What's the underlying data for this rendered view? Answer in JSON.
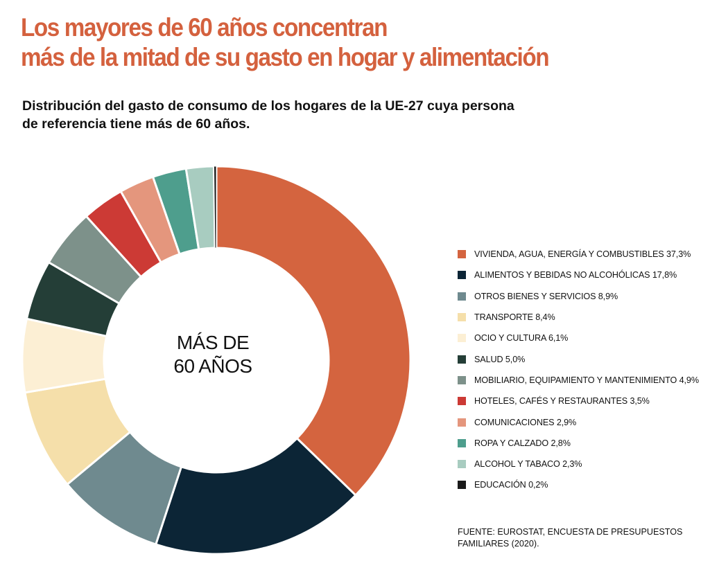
{
  "header": {
    "title_line1": "Los mayores de 60 años concentran",
    "title_line2": "más de la mitad de su gasto en hogar y alimentación",
    "subtitle_line1": "Distribución del gasto de consumo de los hogares de la UE-27 cuya persona",
    "subtitle_line2": "de referencia tiene más de 60 años."
  },
  "chart_data": {
    "type": "pie",
    "donut": true,
    "center_label_line1": "MÁS DE",
    "center_label_line2": "60 AÑOS",
    "unit": "%",
    "slices": [
      {
        "label": "VIVIENDA, AGUA, ENERGÍA Y COMBUSTIBLES 37,3%",
        "value": 37.3,
        "color": "#D4643F"
      },
      {
        "label": "ALIMENTOS Y BEBIDAS NO ALCOHÓLICAS 17,8%",
        "value": 17.8,
        "color": "#0C2536"
      },
      {
        "label": "OTROS BIENES Y SERVICIOS 8,9%",
        "value": 8.9,
        "color": "#6F8A8F"
      },
      {
        "label": "TRANSPORTE 8,4%",
        "value": 8.4,
        "color": "#F5DFAA"
      },
      {
        "label": "OCIO Y CULTURA 6,1%",
        "value": 6.1,
        "color": "#FCEFD4"
      },
      {
        "label": "SALUD 5,0%",
        "value": 5.0,
        "color": "#243E37"
      },
      {
        "label": "MOBILIARIO, EQUIPAMIENTO Y MANTENIMIENTO 4,9%",
        "value": 4.9,
        "color": "#7D918A"
      },
      {
        "label": "HOTELES, CAFÉS Y RESTAURANTES 3,5%",
        "value": 3.5,
        "color": "#CC3A35"
      },
      {
        "label": "COMUNICACIONES 2,9%",
        "value": 2.9,
        "color": "#E4967D"
      },
      {
        "label": "ROPA Y CALZADO 2,8%",
        "value": 2.8,
        "color": "#4E9E8D"
      },
      {
        "label": "ALCOHOL Y TABACO 2,3%",
        "value": 2.3,
        "color": "#A8CCC0"
      },
      {
        "label": "EDUCACIÓN 0,2%",
        "value": 0.2,
        "color": "#1A1A1A"
      }
    ],
    "legend_position": "right"
  },
  "footer": {
    "source_line1": "FUENTE: EUROSTAT, ENCUESTA DE PRESUPUESTOS",
    "source_line2": "FAMILIARES (2020)."
  }
}
